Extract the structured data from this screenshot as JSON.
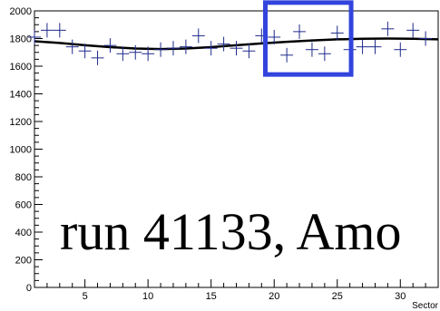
{
  "chart_data": {
    "type": "scatter",
    "xlabel": "Sector",
    "xlim": [
      1,
      33
    ],
    "ylim": [
      0,
      2000
    ],
    "x_ticks": [
      5,
      10,
      15,
      20,
      25,
      30
    ],
    "y_ticks": [
      0,
      200,
      400,
      600,
      800,
      1000,
      1200,
      1400,
      1600,
      1800,
      2000
    ],
    "annotation": "run 41133, Amo",
    "grid": false,
    "series": [
      {
        "marker": "cross",
        "color": "#1f2a8a",
        "x": [
          1,
          2,
          3,
          4,
          5,
          6,
          7,
          8,
          9,
          10,
          11,
          12,
          13,
          14,
          15,
          16,
          17,
          18,
          19,
          20,
          21,
          22,
          23,
          24,
          25,
          26,
          27,
          28,
          29,
          30,
          31,
          32
        ],
        "y": [
          1810,
          1860,
          1860,
          1740,
          1710,
          1660,
          1750,
          1690,
          1700,
          1690,
          1720,
          1730,
          1740,
          1820,
          1730,
          1760,
          1730,
          1710,
          1820,
          1810,
          1680,
          1850,
          1720,
          1690,
          1840,
          1720,
          1740,
          1740,
          1870,
          1720,
          1860,
          1800
        ]
      },
      {
        "style": "line",
        "color": "#000000",
        "x": [
          1,
          3,
          5,
          7,
          9,
          11,
          13,
          15,
          17,
          19,
          21,
          23,
          25,
          27,
          29,
          31,
          33
        ],
        "y": [
          1780,
          1768,
          1752,
          1738,
          1728,
          1724,
          1728,
          1738,
          1752,
          1765,
          1776,
          1786,
          1794,
          1798,
          1800,
          1798,
          1794
        ]
      }
    ],
    "highlight_box": {
      "x": [
        19.3,
        26.1
      ],
      "y": [
        1540,
        2060
      ],
      "color": "#3344dd"
    }
  }
}
